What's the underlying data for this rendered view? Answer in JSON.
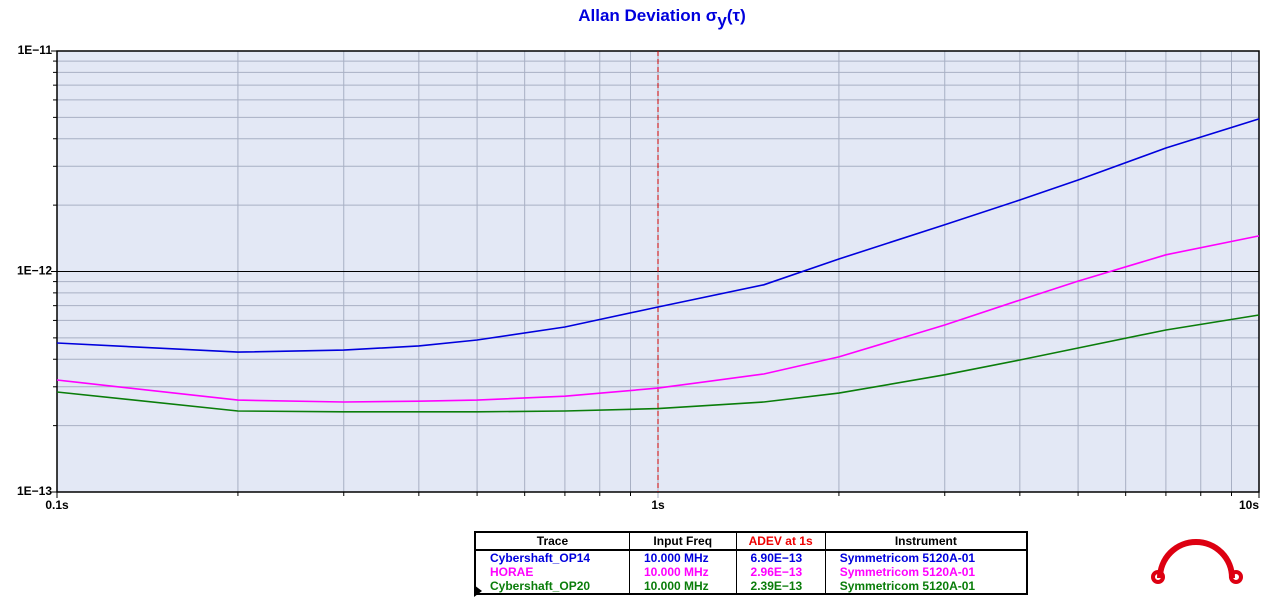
{
  "chart_data": {
    "type": "line",
    "title": "Allan Deviation σ",
    "title_subscript": "y",
    "title_suffix": "(τ)",
    "x": [
      0.1,
      0.2,
      0.3,
      0.4,
      0.5,
      0.7,
      1,
      1.5,
      2,
      3,
      4,
      5,
      7,
      10
    ],
    "series": [
      {
        "name": "Cybershaft_OP14",
        "color": "#0000dd",
        "values": [
          4.74e-13,
          4.31e-13,
          4.4e-13,
          4.6e-13,
          4.89e-13,
          5.6e-13,
          6.9e-13,
          8.7e-13,
          1.14e-12,
          1.63e-12,
          2.11e-12,
          2.6e-12,
          3.63e-12,
          4.92e-12
        ]
      },
      {
        "name": "HORAE",
        "color": "#ff00ff",
        "values": [
          3.22e-13,
          2.61e-13,
          2.56e-13,
          2.58e-13,
          2.61e-13,
          2.72e-13,
          2.96e-13,
          3.43e-13,
          4.1e-13,
          5.72e-13,
          7.42e-13,
          9.05e-13,
          1.19e-12,
          1.45e-12
        ]
      },
      {
        "name": "Cybershaft_OP20",
        "color": "#0a7d0a",
        "values": [
          2.84e-13,
          2.33e-13,
          2.31e-13,
          2.31e-13,
          2.31e-13,
          2.33e-13,
          2.39e-13,
          2.56e-13,
          2.81e-13,
          3.4e-13,
          3.97e-13,
          4.5e-13,
          5.43e-13,
          6.35e-13
        ]
      }
    ],
    "xlim": [
      0.1,
      10
    ],
    "ylim": [
      1e-13,
      1e-11
    ],
    "log_x": true,
    "log_y": true,
    "grid": true,
    "xticks": [
      {
        "value": 0.1,
        "label": "0.1s"
      },
      {
        "value": 1,
        "label": "1s"
      },
      {
        "value": 10,
        "label": "10s"
      }
    ],
    "yticks": [
      {
        "value": 1e-13,
        "label": "1E−13"
      },
      {
        "value": 1e-12,
        "label": "1E−12"
      },
      {
        "value": 1e-11,
        "label": "1E−11"
      }
    ],
    "marker_x": 1,
    "marker_color": "#cc0000",
    "table": {
      "columns": [
        "Trace",
        "Input Freq",
        "ADEV at 1s",
        "Instrument"
      ],
      "highlight_column_color": "#ee0000",
      "rows": [
        [
          "Cybershaft_OP14",
          "10.000 MHz",
          "6.90E−13",
          "Symmetricom 5120A-01"
        ],
        [
          "HORAE",
          "10.000 MHz",
          "2.96E−13",
          "Symmetricom 5120A-01"
        ],
        [
          "Cybershaft_OP20",
          "10.000 MHz",
          "2.39E−13",
          "Symmetricom 5120A-01"
        ]
      ]
    }
  }
}
